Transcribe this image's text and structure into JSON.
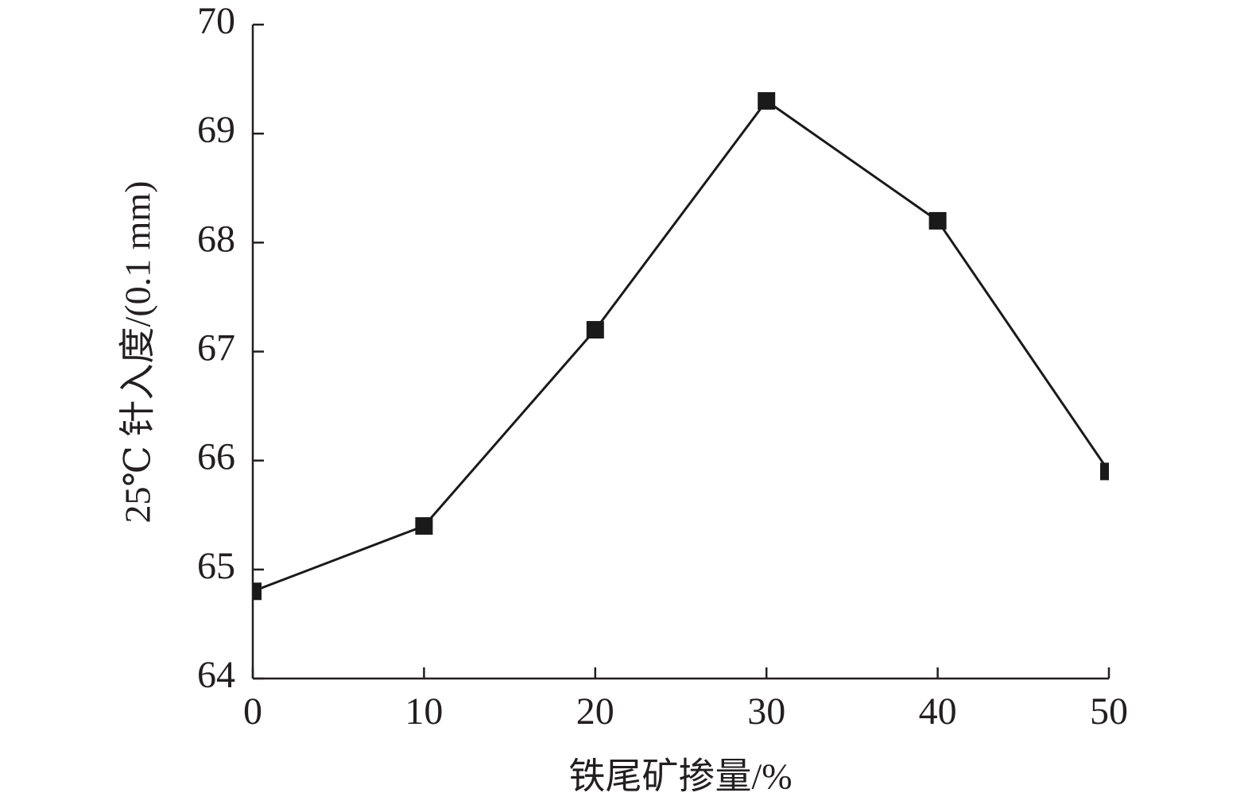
{
  "chart_data": {
    "type": "line",
    "x_label": "铁尾矿掺量/%",
    "y_label": "25℃ 针入度/(0.1 mm)",
    "x": [
      0,
      10,
      20,
      30,
      40,
      50
    ],
    "series": [
      {
        "color": "#1a1a1a",
        "values": [
          64.8,
          65.4,
          67.2,
          69.3,
          68.2,
          65.9
        ]
      }
    ],
    "xlim": [
      0,
      50
    ],
    "xticks": [
      0,
      10,
      20,
      30,
      40,
      50
    ],
    "ylim": [
      64,
      70
    ],
    "yticks": [
      64,
      65,
      66,
      67,
      68,
      69,
      70
    ],
    "grid": false
  }
}
